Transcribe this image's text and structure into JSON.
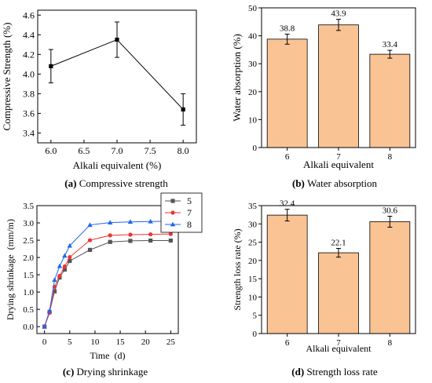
{
  "chart_data": [
    {
      "type": "line",
      "caption": {
        "letter": "(a)",
        "text": "Compressive strength"
      },
      "xlabel": "Alkali equivalent (%)",
      "ylabel": "Compressive Strength (%)",
      "xlim": [
        5.8,
        8.2
      ],
      "ylim": [
        3.3,
        4.65
      ],
      "xticks": [
        "6.0",
        "6.5",
        "7.0",
        "7.5",
        "8.0"
      ],
      "yticks": [
        "3.4",
        "3.6",
        "3.8",
        "4.0",
        "4.2",
        "4.4",
        "4.6"
      ],
      "series": [
        {
          "x": [
            6.0,
            7.0,
            8.0
          ],
          "y": [
            4.08,
            4.35,
            3.64
          ],
          "err": [
            0.17,
            0.18,
            0.16
          ]
        }
      ],
      "colors": {
        "line": "#000000"
      }
    },
    {
      "type": "bar",
      "caption": {
        "letter": "(b)",
        "text": "Water absorption"
      },
      "xlabel": "Alkali equivalent",
      "ylabel": "Water absorption (%)",
      "categories": [
        "6",
        "7",
        "8"
      ],
      "values": [
        38.8,
        43.9,
        33.4
      ],
      "labels": [
        "38.8",
        "43.9",
        "33.4"
      ],
      "err": [
        1.8,
        2.0,
        1.4
      ],
      "ylim": [
        0,
        50
      ],
      "yticks": [
        "0",
        "10",
        "20",
        "30",
        "40",
        "50"
      ],
      "colors": {
        "bar": "#f9c394",
        "edge": "#000000"
      }
    },
    {
      "type": "line",
      "caption": {
        "letter": "(c)",
        "text": "Drying shrinkage"
      },
      "xlabel": "Time (d)",
      "ylabel": "Drying shrinkage (mm/m)",
      "xlim": [
        -1.5,
        26.5
      ],
      "ylim": [
        -0.2,
        3.5
      ],
      "xticks": [
        "0",
        "5",
        "10",
        "15",
        "20",
        "25"
      ],
      "yticks": [
        "0.0",
        "0.5",
        "1.0",
        "1.5",
        "2.0",
        "2.5",
        "3.0",
        "3.5"
      ],
      "x": [
        0,
        1,
        2,
        3,
        4,
        5,
        9,
        13,
        17,
        21,
        25
      ],
      "series": [
        {
          "name": "5",
          "color": "#555555",
          "marker": "square",
          "y": [
            0,
            0.42,
            1.02,
            1.42,
            1.65,
            1.9,
            2.22,
            2.45,
            2.48,
            2.49,
            2.49
          ]
        },
        {
          "name": "7",
          "color": "#ee3333",
          "marker": "circle",
          "y": [
            0,
            0.4,
            1.15,
            1.47,
            1.74,
            2.01,
            2.5,
            2.64,
            2.66,
            2.67,
            2.68
          ]
        },
        {
          "name": "8",
          "color": "#2266ee",
          "marker": "triangle",
          "y": [
            0,
            0.46,
            1.35,
            1.75,
            2.05,
            2.34,
            2.94,
            3.01,
            3.03,
            3.04,
            3.05
          ]
        }
      ]
    },
    {
      "type": "bar",
      "caption": {
        "letter": "(d)",
        "text": "Strength loss rate"
      },
      "xlabel": "Alkali equivalent",
      "ylabel": "Strength loss rate (%)",
      "categories": [
        "6",
        "7",
        "8"
      ],
      "values": [
        32.4,
        22.1,
        30.6
      ],
      "labels": [
        "32.4",
        "22.1",
        "30.6"
      ],
      "err": [
        1.6,
        1.2,
        1.5
      ],
      "ylim": [
        0,
        35
      ],
      "yticks": [
        "0",
        "5",
        "10",
        "15",
        "20",
        "25",
        "30",
        "35"
      ],
      "colors": {
        "bar": "#f9c394",
        "edge": "#000000"
      }
    }
  ]
}
